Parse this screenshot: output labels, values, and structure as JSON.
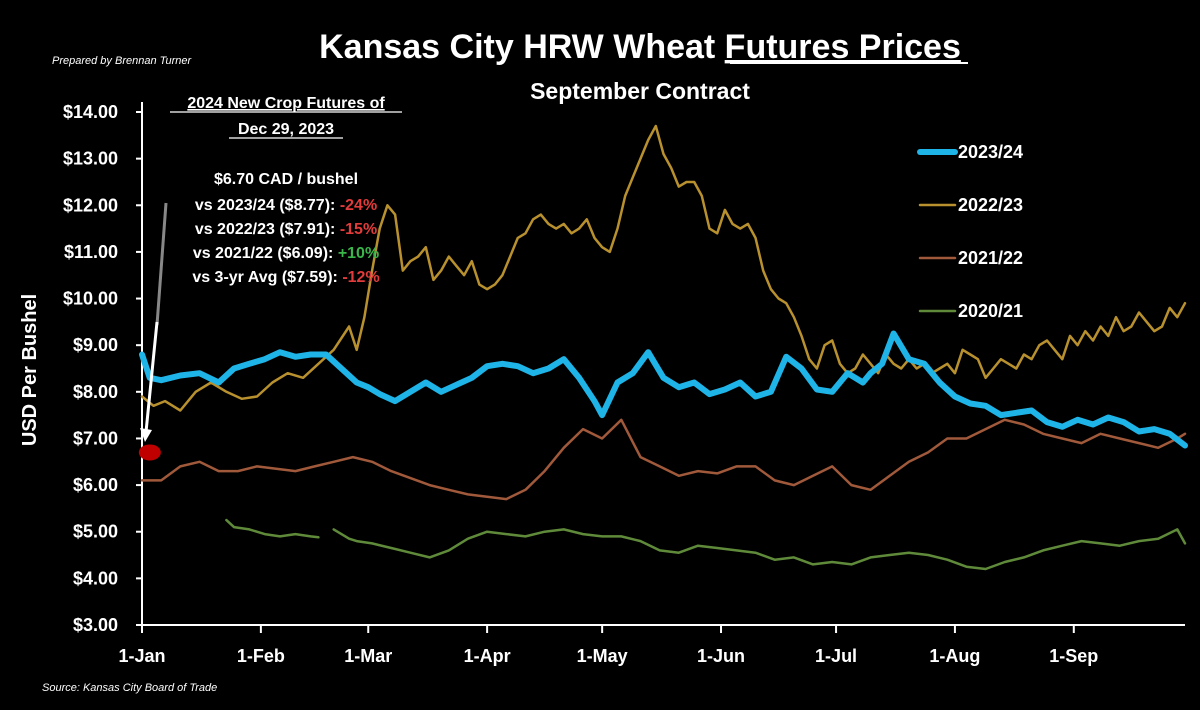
{
  "prepared_by": "Prepared by Brennan Turner",
  "source": "Source: Kansas City Board of Trade",
  "colors": {
    "background": "#000000",
    "s2023_24": "#1fb4e8",
    "s2022_23": "#b8912e",
    "s2021_22": "#a0593a",
    "s2020_21": "#5f8a3a",
    "marker": "#c00000",
    "negative": "#e23b3b",
    "positive": "#3bb54a"
  },
  "annotation": {
    "heading_line1": "2024 New Crop Futures of",
    "heading_line2": "Dec 29, 2023",
    "price_line": "$6.70 CAD / bushel",
    "comparisons": [
      {
        "label": "vs 2023/24 ($8.77): ",
        "change": "-24%",
        "sign": "negative"
      },
      {
        "label": "vs 2022/23 ($7.91): ",
        "change": "-15%",
        "sign": "negative"
      },
      {
        "label": "vs 2021/22 ($6.09): ",
        "change": "+10%",
        "sign": "positive"
      },
      {
        "label": "vs 3-yr Avg ($7.59): ",
        "change": "-12%",
        "sign": "negative"
      }
    ]
  },
  "chart_data": {
    "type": "line",
    "title_prefix": "Kansas City HRW Wheat ",
    "title_underlined": "Futures Prices",
    "subtitle": "September Contract",
    "xlabel": "",
    "ylabel": "USD Per Bushel",
    "ylim": [
      3,
      14
    ],
    "yticks": [
      "$3.00",
      "$4.00",
      "$5.00",
      "$6.00",
      "$7.00",
      "$8.00",
      "$9.00",
      "$10.00",
      "$11.00",
      "$12.00",
      "$13.00",
      "$14.00"
    ],
    "xlim": [
      0,
      272
    ],
    "xticks": [
      {
        "day": 0,
        "label": "1-Jan"
      },
      {
        "day": 31,
        "label": "1-Feb"
      },
      {
        "day": 59,
        "label": "1-Mar"
      },
      {
        "day": 90,
        "label": "1-Apr"
      },
      {
        "day": 120,
        "label": "1-May"
      },
      {
        "day": 151,
        "label": "1-Jun"
      },
      {
        "day": 181,
        "label": "1-Jul"
      },
      {
        "day": 212,
        "label": "1-Aug"
      },
      {
        "day": 243,
        "label": "1-Sep"
      }
    ],
    "legend_position": "right",
    "marker_point": {
      "day": 1,
      "value": 6.7
    },
    "series": [
      {
        "name": "2023/24",
        "x": [
          0,
          2,
          5,
          10,
          15,
          20,
          24,
          28,
          32,
          36,
          40,
          44,
          48,
          52,
          56,
          59,
          62,
          66,
          70,
          74,
          78,
          82,
          86,
          90,
          94,
          98,
          102,
          106,
          110,
          114,
          118,
          120,
          124,
          128,
          132,
          136,
          140,
          144,
          148,
          152,
          156,
          160,
          164,
          168,
          172,
          176,
          180,
          184,
          188,
          190,
          193,
          196,
          200,
          204,
          208,
          212,
          216,
          220,
          224,
          228,
          232,
          236,
          240,
          244,
          248,
          252,
          256,
          260,
          264,
          268,
          272
        ],
        "values": [
          8.8,
          8.3,
          8.25,
          8.35,
          8.4,
          8.2,
          8.5,
          8.6,
          8.7,
          8.85,
          8.75,
          8.8,
          8.8,
          8.5,
          8.2,
          8.1,
          7.95,
          7.8,
          8.0,
          8.2,
          8.0,
          8.15,
          8.3,
          8.55,
          8.6,
          8.55,
          8.4,
          8.5,
          8.7,
          8.3,
          7.8,
          7.5,
          8.2,
          8.4,
          8.85,
          8.3,
          8.1,
          8.2,
          7.95,
          8.05,
          8.2,
          7.9,
          8.0,
          8.75,
          8.5,
          8.05,
          8.0,
          8.4,
          8.2,
          8.4,
          8.6,
          9.25,
          8.7,
          8.6,
          8.2,
          7.9,
          7.75,
          7.7,
          7.5,
          7.55,
          7.6,
          7.35,
          7.25,
          7.4,
          7.3,
          7.45,
          7.35,
          7.15,
          7.2,
          7.1,
          6.85
        ]
      },
      {
        "name": "2022/23",
        "x": [
          0,
          3,
          6,
          10,
          14,
          18,
          22,
          26,
          30,
          34,
          38,
          42,
          46,
          50,
          54,
          56,
          58,
          60,
          62,
          64,
          66,
          68,
          70,
          72,
          74,
          76,
          78,
          80,
          82,
          84,
          86,
          88,
          90,
          92,
          94,
          96,
          98,
          100,
          102,
          104,
          106,
          108,
          110,
          112,
          114,
          116,
          118,
          120,
          122,
          124,
          126,
          128,
          130,
          132,
          134,
          136,
          138,
          140,
          142,
          144,
          146,
          148,
          150,
          152,
          154,
          156,
          158,
          160,
          162,
          164,
          166,
          168,
          170,
          172,
          174,
          176,
          178,
          180,
          182,
          184,
          186,
          188,
          190,
          192,
          194,
          196,
          198,
          200,
          202,
          204,
          206,
          208,
          210,
          212,
          214,
          216,
          218,
          220,
          222,
          224,
          226,
          228,
          230,
          232,
          234,
          236,
          238,
          240,
          242,
          244,
          246,
          248,
          250,
          252,
          254,
          256,
          258,
          260,
          262,
          264,
          266,
          268,
          270,
          272
        ],
        "values": [
          7.9,
          7.7,
          7.8,
          7.6,
          8.0,
          8.2,
          8.0,
          7.85,
          7.9,
          8.2,
          8.4,
          8.3,
          8.6,
          8.9,
          9.4,
          8.9,
          9.6,
          10.6,
          11.5,
          12.0,
          11.8,
          10.6,
          10.8,
          10.9,
          11.1,
          10.4,
          10.6,
          10.9,
          10.7,
          10.5,
          10.8,
          10.3,
          10.2,
          10.3,
          10.5,
          10.9,
          11.3,
          11.4,
          11.7,
          11.8,
          11.6,
          11.5,
          11.6,
          11.4,
          11.5,
          11.7,
          11.3,
          11.1,
          11.0,
          11.5,
          12.2,
          12.6,
          13.0,
          13.4,
          13.7,
          13.1,
          12.8,
          12.4,
          12.5,
          12.5,
          12.2,
          11.5,
          11.4,
          11.9,
          11.6,
          11.5,
          11.6,
          11.3,
          10.6,
          10.2,
          10.0,
          9.9,
          9.6,
          9.2,
          8.7,
          8.5,
          9.0,
          9.1,
          8.6,
          8.4,
          8.5,
          8.8,
          8.6,
          8.4,
          8.8,
          8.6,
          8.5,
          8.7,
          8.5,
          8.6,
          8.4,
          8.5,
          8.6,
          8.4,
          8.9,
          8.8,
          8.7,
          8.3,
          8.5,
          8.7,
          8.6,
          8.5,
          8.8,
          8.7,
          9.0,
          9.1,
          8.9,
          8.7,
          9.2,
          9.0,
          9.3,
          9.1,
          9.4,
          9.2,
          9.6,
          9.3,
          9.4,
          9.7,
          9.5,
          9.3,
          9.4,
          9.8,
          9.6,
          9.9
        ]
      },
      {
        "name": "2021/22",
        "x": [
          0,
          5,
          10,
          15,
          20,
          25,
          30,
          35,
          40,
          45,
          50,
          55,
          60,
          65,
          70,
          75,
          80,
          85,
          90,
          95,
          100,
          105,
          110,
          115,
          120,
          125,
          130,
          135,
          140,
          145,
          150,
          155,
          160,
          165,
          170,
          175,
          180,
          185,
          190,
          195,
          200,
          205,
          210,
          215,
          220,
          225,
          230,
          235,
          240,
          245,
          250,
          255,
          260,
          265,
          270,
          272
        ],
        "values": [
          6.1,
          6.1,
          6.4,
          6.5,
          6.3,
          6.3,
          6.4,
          6.35,
          6.3,
          6.4,
          6.5,
          6.6,
          6.5,
          6.3,
          6.15,
          6.0,
          5.9,
          5.8,
          5.75,
          5.7,
          5.9,
          6.3,
          6.8,
          7.2,
          7.0,
          7.4,
          6.6,
          6.4,
          6.2,
          6.3,
          6.25,
          6.4,
          6.4,
          6.1,
          6.0,
          6.2,
          6.4,
          6.0,
          5.9,
          6.2,
          6.5,
          6.7,
          7.0,
          7.0,
          7.2,
          7.4,
          7.3,
          7.1,
          7.0,
          6.9,
          7.1,
          7.0,
          6.9,
          6.8,
          7.0,
          7.1
        ]
      },
      {
        "name": "2020/21",
        "x": [
          22,
          24,
          28,
          32,
          36,
          40,
          44,
          46,
          48,
          50,
          52,
          54,
          56,
          60,
          65,
          70,
          75,
          80,
          85,
          90,
          95,
          100,
          105,
          110,
          115,
          120,
          125,
          130,
          135,
          140,
          145,
          150,
          155,
          160,
          165,
          170,
          175,
          180,
          185,
          190,
          195,
          200,
          205,
          210,
          215,
          220,
          225,
          230,
          235,
          240,
          245,
          250,
          255,
          260,
          265,
          270,
          272
        ],
        "values": [
          5.25,
          5.1,
          5.05,
          4.95,
          4.9,
          4.95,
          4.9,
          4.88,
          null,
          5.05,
          4.95,
          4.85,
          4.8,
          4.75,
          4.65,
          4.55,
          4.45,
          4.6,
          4.85,
          5.0,
          4.95,
          4.9,
          5.0,
          5.05,
          4.95,
          4.9,
          4.9,
          4.8,
          4.6,
          4.55,
          4.7,
          4.65,
          4.6,
          4.55,
          4.4,
          4.45,
          4.3,
          4.35,
          4.3,
          4.45,
          4.5,
          4.55,
          4.5,
          4.4,
          4.25,
          4.2,
          4.35,
          4.45,
          4.6,
          4.7,
          4.8,
          4.75,
          4.7,
          4.8,
          4.85,
          5.05,
          4.75
        ]
      }
    ]
  }
}
